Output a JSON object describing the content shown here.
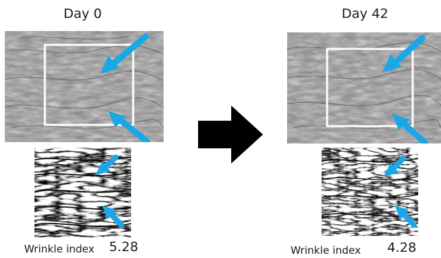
{
  "panels": [
    {
      "label": "Day 0",
      "wrinkle_label": "Wrinkle index",
      "wrinkle_value": "5.28"
    },
    {
      "label": "Day 42",
      "wrinkle_label": "Wrinkle index",
      "wrinkle_value": "4.28"
    }
  ],
  "colors": {
    "arrow_blue": "#1aa7e8",
    "transition_arrow": "#000000",
    "roi_box": "#ffffff",
    "skin_gray": "#8e8e8e"
  }
}
